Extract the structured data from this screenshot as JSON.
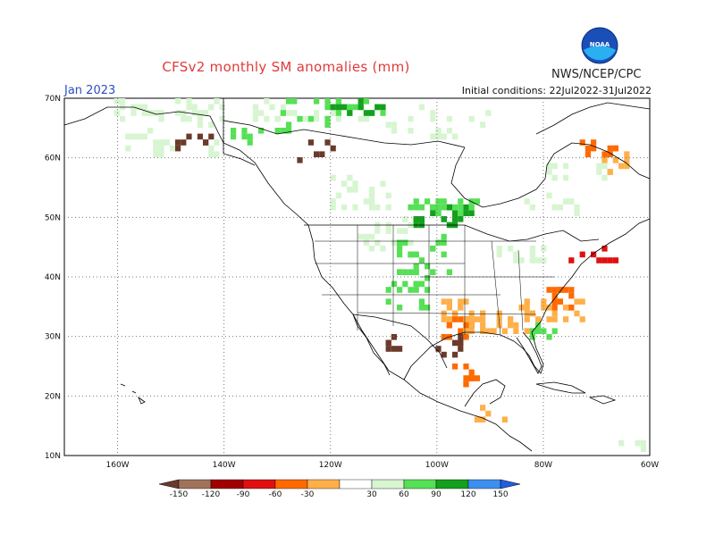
{
  "title": "CFSv2 monthly SM anomalies (mm)",
  "agency": "NWS/NCEP/CPC",
  "valid_month": "Jan 2023",
  "initial_conditions": "Initial conditions: 22Jul2022-31Jul2022",
  "logo_text": "NOAA",
  "map": {
    "lon_range": [
      -170,
      -60
    ],
    "lat_range": [
      10,
      70
    ],
    "x_ticks": [
      {
        "lon": -160,
        "label": "160W"
      },
      {
        "lon": -140,
        "label": "140W"
      },
      {
        "lon": -120,
        "label": "120W"
      },
      {
        "lon": -100,
        "label": "100W"
      },
      {
        "lon": -80,
        "label": "80W"
      },
      {
        "lon": -60,
        "label": "60W"
      }
    ],
    "y_ticks": [
      {
        "lat": 70,
        "label": "70N"
      },
      {
        "lat": 60,
        "label": "60N"
      },
      {
        "lat": 50,
        "label": "50N"
      },
      {
        "lat": 40,
        "label": "40N"
      },
      {
        "lat": 30,
        "label": "30N"
      },
      {
        "lat": 20,
        "label": "20N"
      },
      {
        "lat": 10,
        "label": "10N"
      }
    ],
    "gridlines": "dotted"
  },
  "colorbar": {
    "labels": [
      "-150",
      "-120",
      "-90",
      "-60",
      "-30",
      "30",
      "60",
      "90",
      "120",
      "150"
    ],
    "colors": [
      "#6b3a2a",
      "#a0735a",
      "#a00000",
      "#e01010",
      "#ff6a00",
      "#ffb04a",
      "#ffffff",
      "#d6f5d0",
      "#55e055",
      "#14a01e",
      "#3e8ef0",
      "#1f5fe0"
    ]
  },
  "anomaly_colors": {
    "very_dry": "#6b3a2a",
    "dry_120": "#a00000",
    "dry_90": "#e01010",
    "dry_60": "#ff6a00",
    "dry_30": "#ffb04a",
    "wet_30": "#d6f5d0",
    "wet_60": "#55e055",
    "wet_90": "#14a01e",
    "wet_120": "#3e8ef0"
  }
}
